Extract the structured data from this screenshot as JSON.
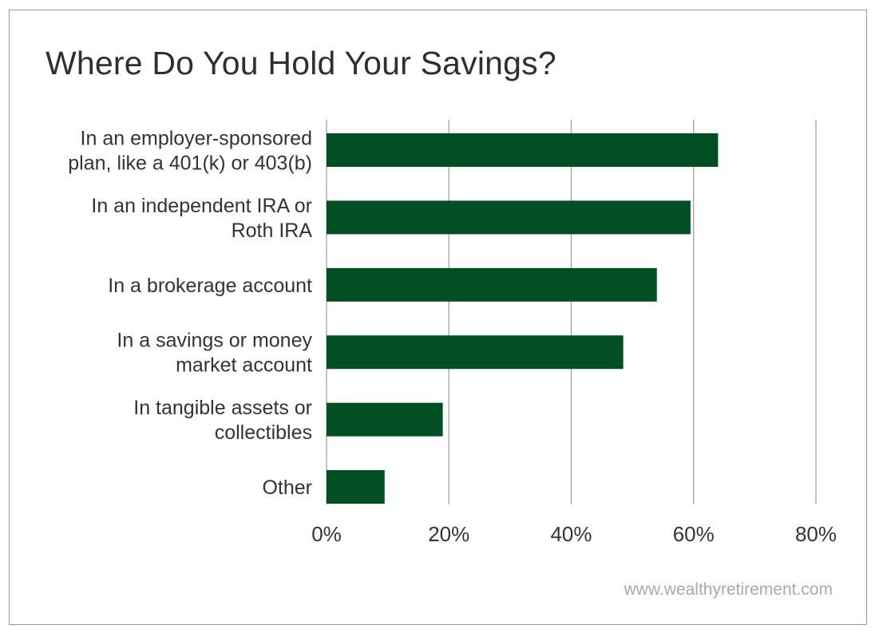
{
  "chart_data": {
    "type": "bar",
    "orientation": "horizontal",
    "title": "Where Do You Hold Your Savings?",
    "categories": [
      [
        "In an employer-sponsored",
        "plan, like a 401(k) or 403(b)"
      ],
      [
        "In an independent IRA or",
        "Roth IRA"
      ],
      [
        "In a brokerage account"
      ],
      [
        "In a savings or money",
        "market account"
      ],
      [
        "In tangible assets or",
        "collectibles"
      ],
      [
        "Other"
      ]
    ],
    "values": [
      64,
      59.5,
      54,
      48.5,
      19,
      9.5
    ],
    "value_unit": "%",
    "xlim": [
      0,
      80
    ],
    "xticks": [
      0,
      20,
      40,
      60,
      80
    ],
    "tick_labels": [
      "0%",
      "20%",
      "40%",
      "60%",
      "80%"
    ],
    "grid": true,
    "bar_color": "#034f24",
    "grid_color": "#a0a0a0",
    "source": "www.wealthyretirement.com"
  }
}
